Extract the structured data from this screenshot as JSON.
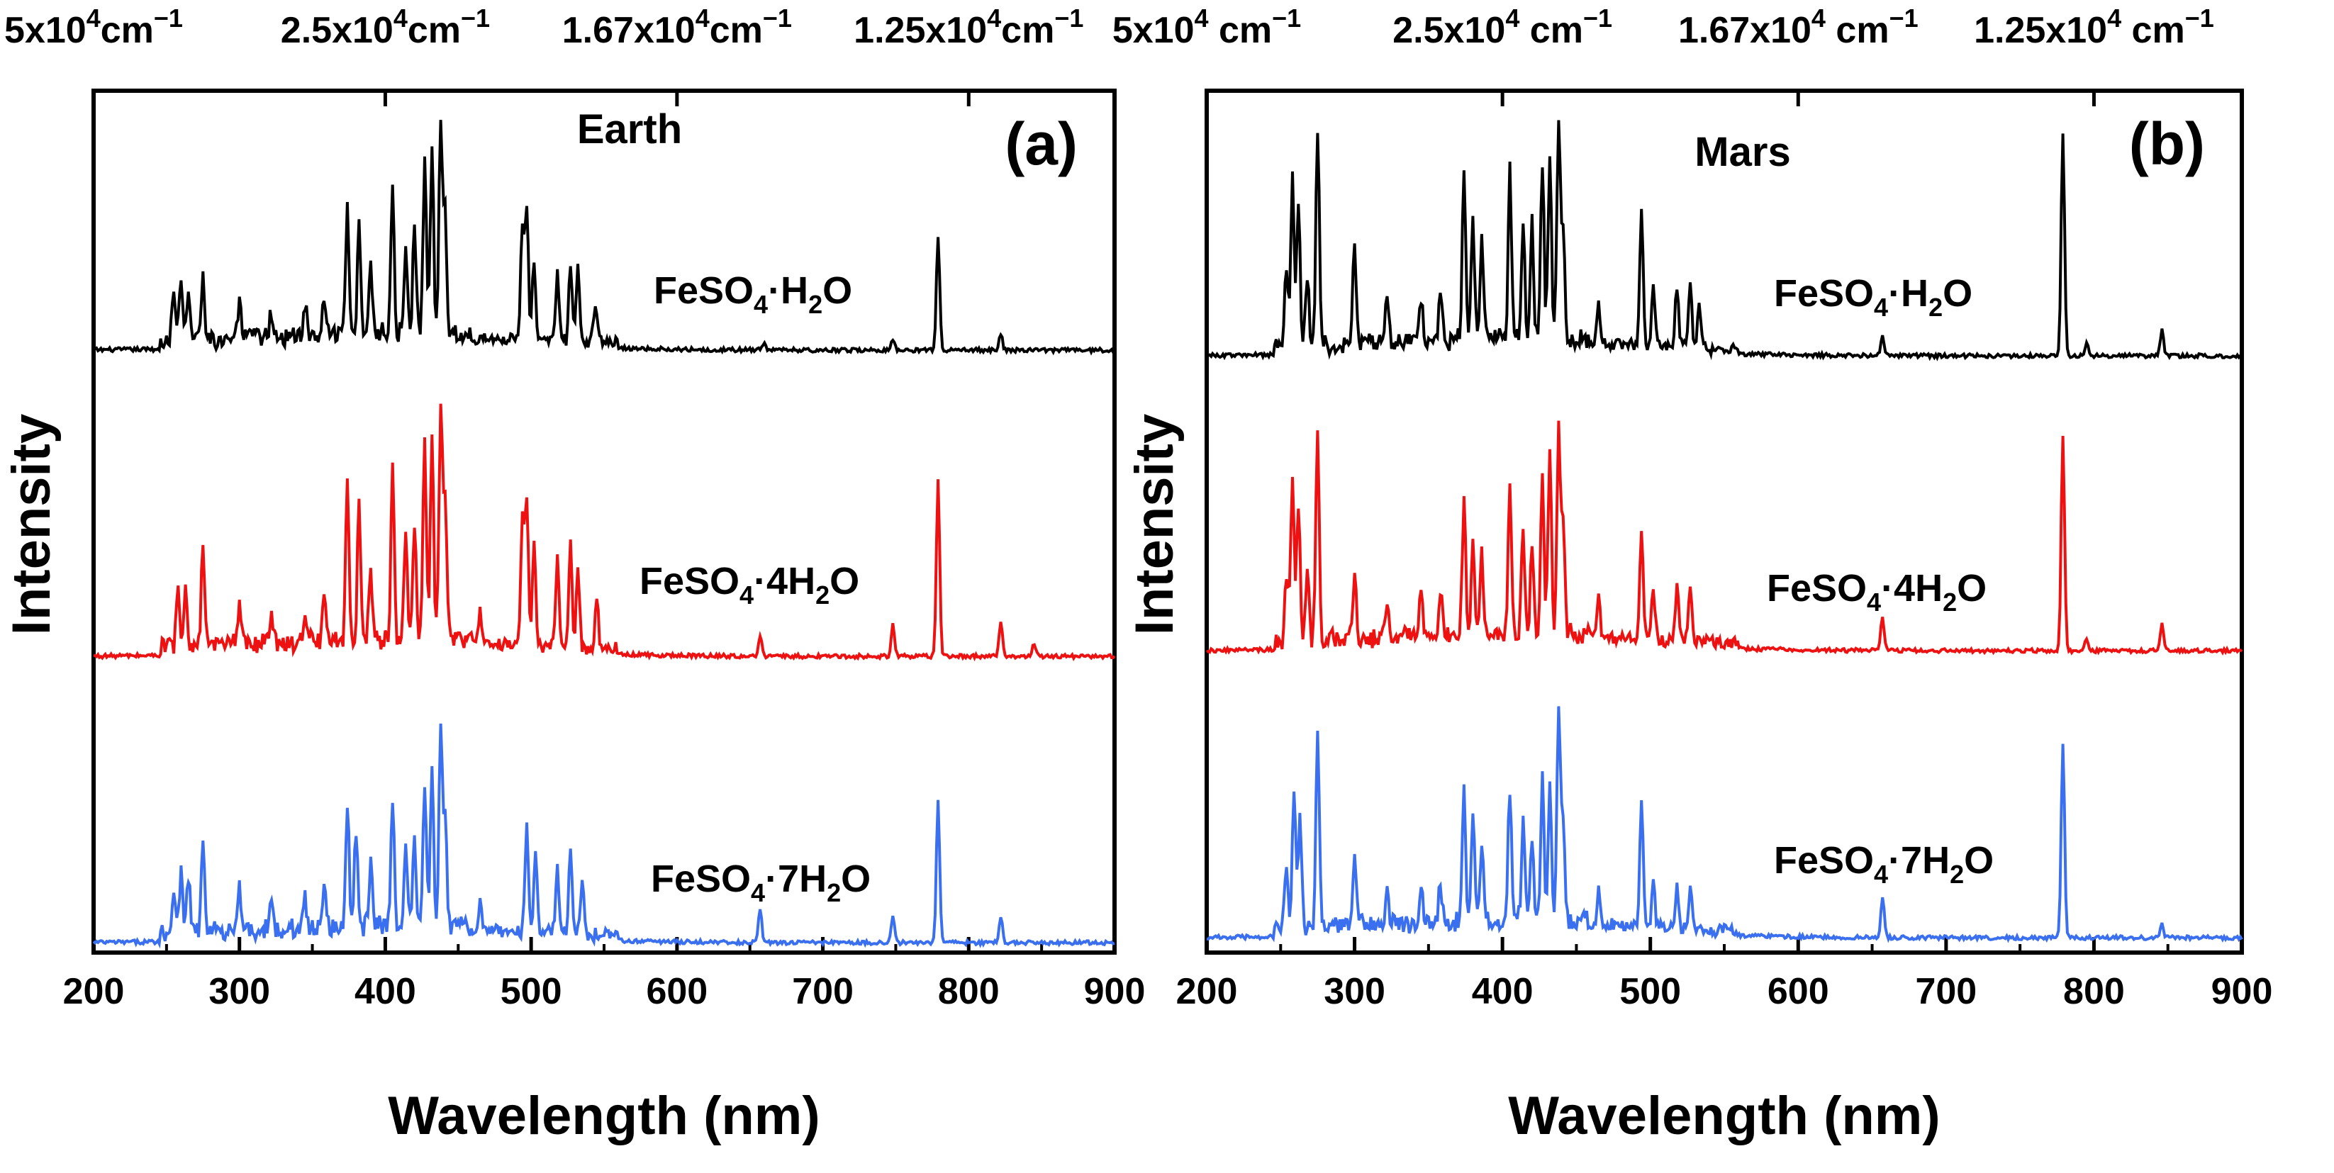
{
  "chart_data": [
    {
      "type": "line",
      "panel_label": "(a)",
      "planet": "Earth",
      "xlabel": "Wavelength (nm)",
      "ylabel": "Intensity",
      "xlim": [
        200,
        900
      ],
      "x_ticks": [
        "200",
        "300",
        "400",
        "500",
        "600",
        "700",
        "800",
        "900"
      ],
      "top_axis_ticks": [
        {
          "at_nm": 200,
          "base": "5x10",
          "exp": "4",
          "unit": "cm",
          "unit_exp": "−1"
        },
        {
          "at_nm": 400,
          "base": "2.5x10",
          "exp": "4",
          "unit": "cm",
          "unit_exp": "−1"
        },
        {
          "at_nm": 600,
          "base": "1.67x10",
          "exp": "4",
          "unit": "cm",
          "unit_exp": "−1"
        },
        {
          "at_nm": 800,
          "base": "1.25x10",
          "exp": "4",
          "unit": "cm",
          "unit_exp": "−1"
        }
      ],
      "series": [
        {
          "name": "FeSO4·H2O",
          "label_main": "FeSO",
          "label_sub": "4",
          "label_mid": "·H",
          "label_sub2": "2",
          "label_end": "O",
          "color": "#000000",
          "peaks": [
            {
              "nm": 255,
              "h": 0.35
            },
            {
              "nm": 260,
              "h": 0.45
            },
            {
              "nm": 265,
              "h": 0.35
            },
            {
              "nm": 275,
              "h": 0.48
            },
            {
              "nm": 300,
              "h": 0.25
            },
            {
              "nm": 322,
              "h": 0.2
            },
            {
              "nm": 345,
              "h": 0.22
            },
            {
              "nm": 358,
              "h": 0.25
            },
            {
              "nm": 374,
              "h": 0.95
            },
            {
              "nm": 382,
              "h": 0.85
            },
            {
              "nm": 390,
              "h": 0.5
            },
            {
              "nm": 405,
              "h": 1.1
            },
            {
              "nm": 414,
              "h": 0.65
            },
            {
              "nm": 420,
              "h": 0.75
            },
            {
              "nm": 427,
              "h": 1.25
            },
            {
              "nm": 432,
              "h": 1.35
            },
            {
              "nm": 438,
              "h": 1.6
            },
            {
              "nm": 441,
              "h": 0.9
            },
            {
              "nm": 494,
              "h": 0.85
            },
            {
              "nm": 497,
              "h": 0.95
            },
            {
              "nm": 502,
              "h": 0.6
            },
            {
              "nm": 518,
              "h": 0.5
            },
            {
              "nm": 527,
              "h": 0.6
            },
            {
              "nm": 532,
              "h": 0.55
            },
            {
              "nm": 544,
              "h": 0.3
            },
            {
              "nm": 660,
              "h": 0.05
            },
            {
              "nm": 748,
              "h": 0.08
            },
            {
              "nm": 779,
              "h": 0.85
            },
            {
              "nm": 822,
              "h": 0.12
            }
          ]
        },
        {
          "name": "FeSO4·4H2O",
          "label_main": "FeSO",
          "label_sub": "4",
          "label_mid": "·4H",
          "label_sub2": "2",
          "label_end": "O",
          "color": "#ee1111",
          "peaks": [
            {
              "nm": 258,
              "h": 0.45
            },
            {
              "nm": 263,
              "h": 0.4
            },
            {
              "nm": 275,
              "h": 0.72
            },
            {
              "nm": 300,
              "h": 0.25
            },
            {
              "nm": 322,
              "h": 0.22
            },
            {
              "nm": 345,
              "h": 0.25
            },
            {
              "nm": 358,
              "h": 0.35
            },
            {
              "nm": 374,
              "h": 1.15
            },
            {
              "nm": 382,
              "h": 1.0
            },
            {
              "nm": 390,
              "h": 0.55
            },
            {
              "nm": 405,
              "h": 1.25
            },
            {
              "nm": 414,
              "h": 0.75
            },
            {
              "nm": 420,
              "h": 0.9
            },
            {
              "nm": 427,
              "h": 1.45
            },
            {
              "nm": 432,
              "h": 1.5
            },
            {
              "nm": 438,
              "h": 1.75
            },
            {
              "nm": 441,
              "h": 1.1
            },
            {
              "nm": 465,
              "h": 0.25
            },
            {
              "nm": 494,
              "h": 0.95
            },
            {
              "nm": 497,
              "h": 1.1
            },
            {
              "nm": 502,
              "h": 0.75
            },
            {
              "nm": 518,
              "h": 0.65
            },
            {
              "nm": 527,
              "h": 0.75
            },
            {
              "nm": 532,
              "h": 0.6
            },
            {
              "nm": 545,
              "h": 0.35
            },
            {
              "nm": 657,
              "h": 0.15
            },
            {
              "nm": 748,
              "h": 0.25
            },
            {
              "nm": 779,
              "h": 1.3
            },
            {
              "nm": 822,
              "h": 0.25
            },
            {
              "nm": 845,
              "h": 0.1
            }
          ]
        },
        {
          "name": "FeSO4·7H2O",
          "label_main": "FeSO",
          "label_sub": "4",
          "label_mid": "·7H",
          "label_sub2": "2",
          "label_end": "O",
          "color": "#3a6ff0",
          "peaks": [
            {
              "nm": 255,
              "h": 0.3
            },
            {
              "nm": 260,
              "h": 0.45
            },
            {
              "nm": 265,
              "h": 0.4
            },
            {
              "nm": 275,
              "h": 0.65
            },
            {
              "nm": 300,
              "h": 0.3
            },
            {
              "nm": 322,
              "h": 0.25
            },
            {
              "nm": 345,
              "h": 0.22
            },
            {
              "nm": 358,
              "h": 0.3
            },
            {
              "nm": 374,
              "h": 0.95
            },
            {
              "nm": 380,
              "h": 0.75
            },
            {
              "nm": 390,
              "h": 0.45
            },
            {
              "nm": 405,
              "h": 0.9
            },
            {
              "nm": 414,
              "h": 0.65
            },
            {
              "nm": 420,
              "h": 0.7
            },
            {
              "nm": 427,
              "h": 1.1
            },
            {
              "nm": 432,
              "h": 1.15
            },
            {
              "nm": 438,
              "h": 1.5
            },
            {
              "nm": 441,
              "h": 0.8
            },
            {
              "nm": 465,
              "h": 0.2
            },
            {
              "nm": 497,
              "h": 0.8
            },
            {
              "nm": 503,
              "h": 0.6
            },
            {
              "nm": 518,
              "h": 0.5
            },
            {
              "nm": 527,
              "h": 0.6
            },
            {
              "nm": 535,
              "h": 0.4
            },
            {
              "nm": 657,
              "h": 0.25
            },
            {
              "nm": 748,
              "h": 0.2
            },
            {
              "nm": 779,
              "h": 1.05
            },
            {
              "nm": 822,
              "h": 0.2
            }
          ]
        }
      ]
    },
    {
      "type": "line",
      "panel_label": "(b)",
      "planet": "Mars",
      "xlabel": "Wavelength (nm)",
      "ylabel": "Intensity",
      "xlim": [
        200,
        900
      ],
      "x_ticks": [
        "200",
        "300",
        "400",
        "500",
        "600",
        "700",
        "800",
        "900"
      ],
      "top_axis_ticks": [
        {
          "at_nm": 200,
          "base": "5x10",
          "exp": "4",
          "unit": " cm",
          "unit_exp": "−1"
        },
        {
          "at_nm": 400,
          "base": "2.5x10",
          "exp": "4",
          "unit": " cm",
          "unit_exp": "−1"
        },
        {
          "at_nm": 600,
          "base": "1.67x10",
          "exp": "4",
          "unit": " cm",
          "unit_exp": "−1"
        },
        {
          "at_nm": 800,
          "base": "1.25x10",
          "exp": "4",
          "unit": " cm",
          "unit_exp": "−1"
        }
      ],
      "series": [
        {
          "name": "FeSO4·H2O",
          "label_main": "FeSO",
          "label_sub": "4",
          "label_mid": "·H",
          "label_sub2": "2",
          "label_end": "O",
          "color": "#000000",
          "peaks": [
            {
              "nm": 254,
              "h": 0.6
            },
            {
              "nm": 258,
              "h": 1.25
            },
            {
              "nm": 262,
              "h": 1.05
            },
            {
              "nm": 268,
              "h": 0.55
            },
            {
              "nm": 275,
              "h": 1.6
            },
            {
              "nm": 300,
              "h": 0.75
            },
            {
              "nm": 322,
              "h": 0.35
            },
            {
              "nm": 345,
              "h": 0.35
            },
            {
              "nm": 358,
              "h": 0.4
            },
            {
              "nm": 374,
              "h": 1.25
            },
            {
              "nm": 380,
              "h": 0.9
            },
            {
              "nm": 386,
              "h": 0.75
            },
            {
              "nm": 405,
              "h": 1.25
            },
            {
              "nm": 414,
              "h": 0.9
            },
            {
              "nm": 420,
              "h": 0.85
            },
            {
              "nm": 427,
              "h": 1.3
            },
            {
              "nm": 432,
              "h": 1.4
            },
            {
              "nm": 438,
              "h": 1.6
            },
            {
              "nm": 441,
              "h": 0.85
            },
            {
              "nm": 465,
              "h": 0.3
            },
            {
              "nm": 494,
              "h": 1.0
            },
            {
              "nm": 502,
              "h": 0.45
            },
            {
              "nm": 518,
              "h": 0.45
            },
            {
              "nm": 527,
              "h": 0.45
            },
            {
              "nm": 533,
              "h": 0.35
            },
            {
              "nm": 657,
              "h": 0.15
            },
            {
              "nm": 779,
              "h": 1.65
            },
            {
              "nm": 795,
              "h": 0.1
            },
            {
              "nm": 846,
              "h": 0.2
            }
          ]
        },
        {
          "name": "FeSO4·4H2O",
          "label_main": "FeSO",
          "label_sub": "4",
          "label_mid": "·4H",
          "label_sub2": "2",
          "label_end": "O",
          "color": "#ee1111",
          "peaks": [
            {
              "nm": 254,
              "h": 0.5
            },
            {
              "nm": 258,
              "h": 1.25
            },
            {
              "nm": 262,
              "h": 1.0
            },
            {
              "nm": 268,
              "h": 0.5
            },
            {
              "nm": 275,
              "h": 1.55
            },
            {
              "nm": 300,
              "h": 0.5
            },
            {
              "nm": 322,
              "h": 0.3
            },
            {
              "nm": 345,
              "h": 0.3
            },
            {
              "nm": 358,
              "h": 0.35
            },
            {
              "nm": 374,
              "h": 1.0
            },
            {
              "nm": 380,
              "h": 0.7
            },
            {
              "nm": 386,
              "h": 0.6
            },
            {
              "nm": 405,
              "h": 1.1
            },
            {
              "nm": 414,
              "h": 0.8
            },
            {
              "nm": 420,
              "h": 0.7
            },
            {
              "nm": 427,
              "h": 1.2
            },
            {
              "nm": 432,
              "h": 1.4
            },
            {
              "nm": 438,
              "h": 1.55
            },
            {
              "nm": 441,
              "h": 0.8
            },
            {
              "nm": 465,
              "h": 0.3
            },
            {
              "nm": 494,
              "h": 0.85
            },
            {
              "nm": 502,
              "h": 0.4
            },
            {
              "nm": 518,
              "h": 0.4
            },
            {
              "nm": 527,
              "h": 0.4
            },
            {
              "nm": 657,
              "h": 0.25
            },
            {
              "nm": 779,
              "h": 1.6
            },
            {
              "nm": 795,
              "h": 0.1
            },
            {
              "nm": 846,
              "h": 0.2
            }
          ]
        },
        {
          "name": "FeSO4·7H2O",
          "label_main": "FeSO",
          "label_sub": "4",
          "label_mid": "·7H",
          "label_sub2": "2",
          "label_end": "O",
          "color": "#3a6ff0",
          "peaks": [
            {
              "nm": 254,
              "h": 0.5
            },
            {
              "nm": 259,
              "h": 1.0
            },
            {
              "nm": 263,
              "h": 0.8
            },
            {
              "nm": 275,
              "h": 1.45
            },
            {
              "nm": 300,
              "h": 0.55
            },
            {
              "nm": 322,
              "h": 0.25
            },
            {
              "nm": 345,
              "h": 0.25
            },
            {
              "nm": 358,
              "h": 0.3
            },
            {
              "nm": 374,
              "h": 1.0
            },
            {
              "nm": 380,
              "h": 0.8
            },
            {
              "nm": 386,
              "h": 0.6
            },
            {
              "nm": 405,
              "h": 1.0
            },
            {
              "nm": 414,
              "h": 0.75
            },
            {
              "nm": 420,
              "h": 0.6
            },
            {
              "nm": 427,
              "h": 1.1
            },
            {
              "nm": 432,
              "h": 1.05
            },
            {
              "nm": 438,
              "h": 1.55
            },
            {
              "nm": 441,
              "h": 0.8
            },
            {
              "nm": 465,
              "h": 0.25
            },
            {
              "nm": 494,
              "h": 0.95
            },
            {
              "nm": 502,
              "h": 0.35
            },
            {
              "nm": 518,
              "h": 0.3
            },
            {
              "nm": 527,
              "h": 0.3
            },
            {
              "nm": 657,
              "h": 0.3
            },
            {
              "nm": 779,
              "h": 1.45
            },
            {
              "nm": 846,
              "h": 0.1
            }
          ]
        }
      ]
    }
  ]
}
